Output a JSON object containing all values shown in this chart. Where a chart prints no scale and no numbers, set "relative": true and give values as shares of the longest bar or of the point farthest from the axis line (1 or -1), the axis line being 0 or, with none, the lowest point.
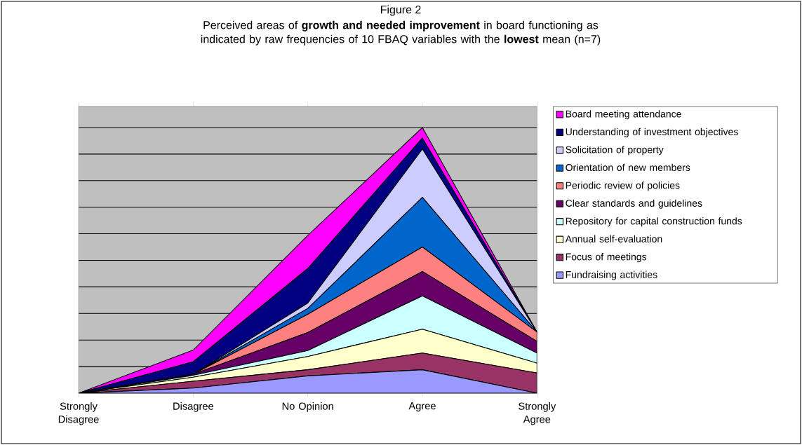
{
  "chart_data": {
    "type": "area",
    "stacked": true,
    "relative": true,
    "grid": "y",
    "legend": "right",
    "title": "Figure 2",
    "subtitle": "Perceived areas of **growth and needed improvement** in board functioning as indicated by raw frequencies of 10 FBAQ variables with the **lowest** mean (n=7)",
    "categories": [
      "Strongly Disagree",
      "Disagree",
      "No Opinion",
      "Agree",
      "Strongly Agree"
    ],
    "series": [
      {
        "name": "Fundraising activities",
        "color": "#9999ff",
        "values": [
          0,
          0.019,
          0.065,
          0.088,
          0
        ]
      },
      {
        "name": "Focus of meetings",
        "color": "#993366",
        "values": [
          0,
          0.026,
          0.023,
          0.063,
          0.076
        ]
      },
      {
        "name": "Annual self-evaluation",
        "color": "#ffffcc",
        "values": [
          0,
          0.015,
          0.05,
          0.09,
          0.037
        ]
      },
      {
        "name": "Repository for capital construction funds",
        "color": "#ccffff",
        "values": [
          0,
          0.007,
          0.022,
          0.125,
          0.038
        ]
      },
      {
        "name": "Clear standards and guidelines",
        "color": "#660066",
        "values": [
          0,
          0.004,
          0.068,
          0.092,
          0.044
        ]
      },
      {
        "name": "Periodic review of policies",
        "color": "#ff8080",
        "values": [
          0,
          0,
          0.069,
          0.092,
          0.035
        ]
      },
      {
        "name": "Orientation of new members",
        "color": "#0066cc",
        "values": [
          0,
          0,
          0.022,
          0.187,
          0
        ]
      },
      {
        "name": "Solicitation of property",
        "color": "#ccccff",
        "values": [
          0,
          0,
          0.02,
          0.182,
          0
        ]
      },
      {
        "name": "Understanding of investment objectives",
        "color": "#000080",
        "values": [
          0,
          0.047,
          0.13,
          0.041,
          0
        ]
      },
      {
        "name": "Board meeting attendance",
        "color": "#ff00ff",
        "values": [
          0,
          0.044,
          0.125,
          0.04,
          0
        ]
      }
    ]
  }
}
